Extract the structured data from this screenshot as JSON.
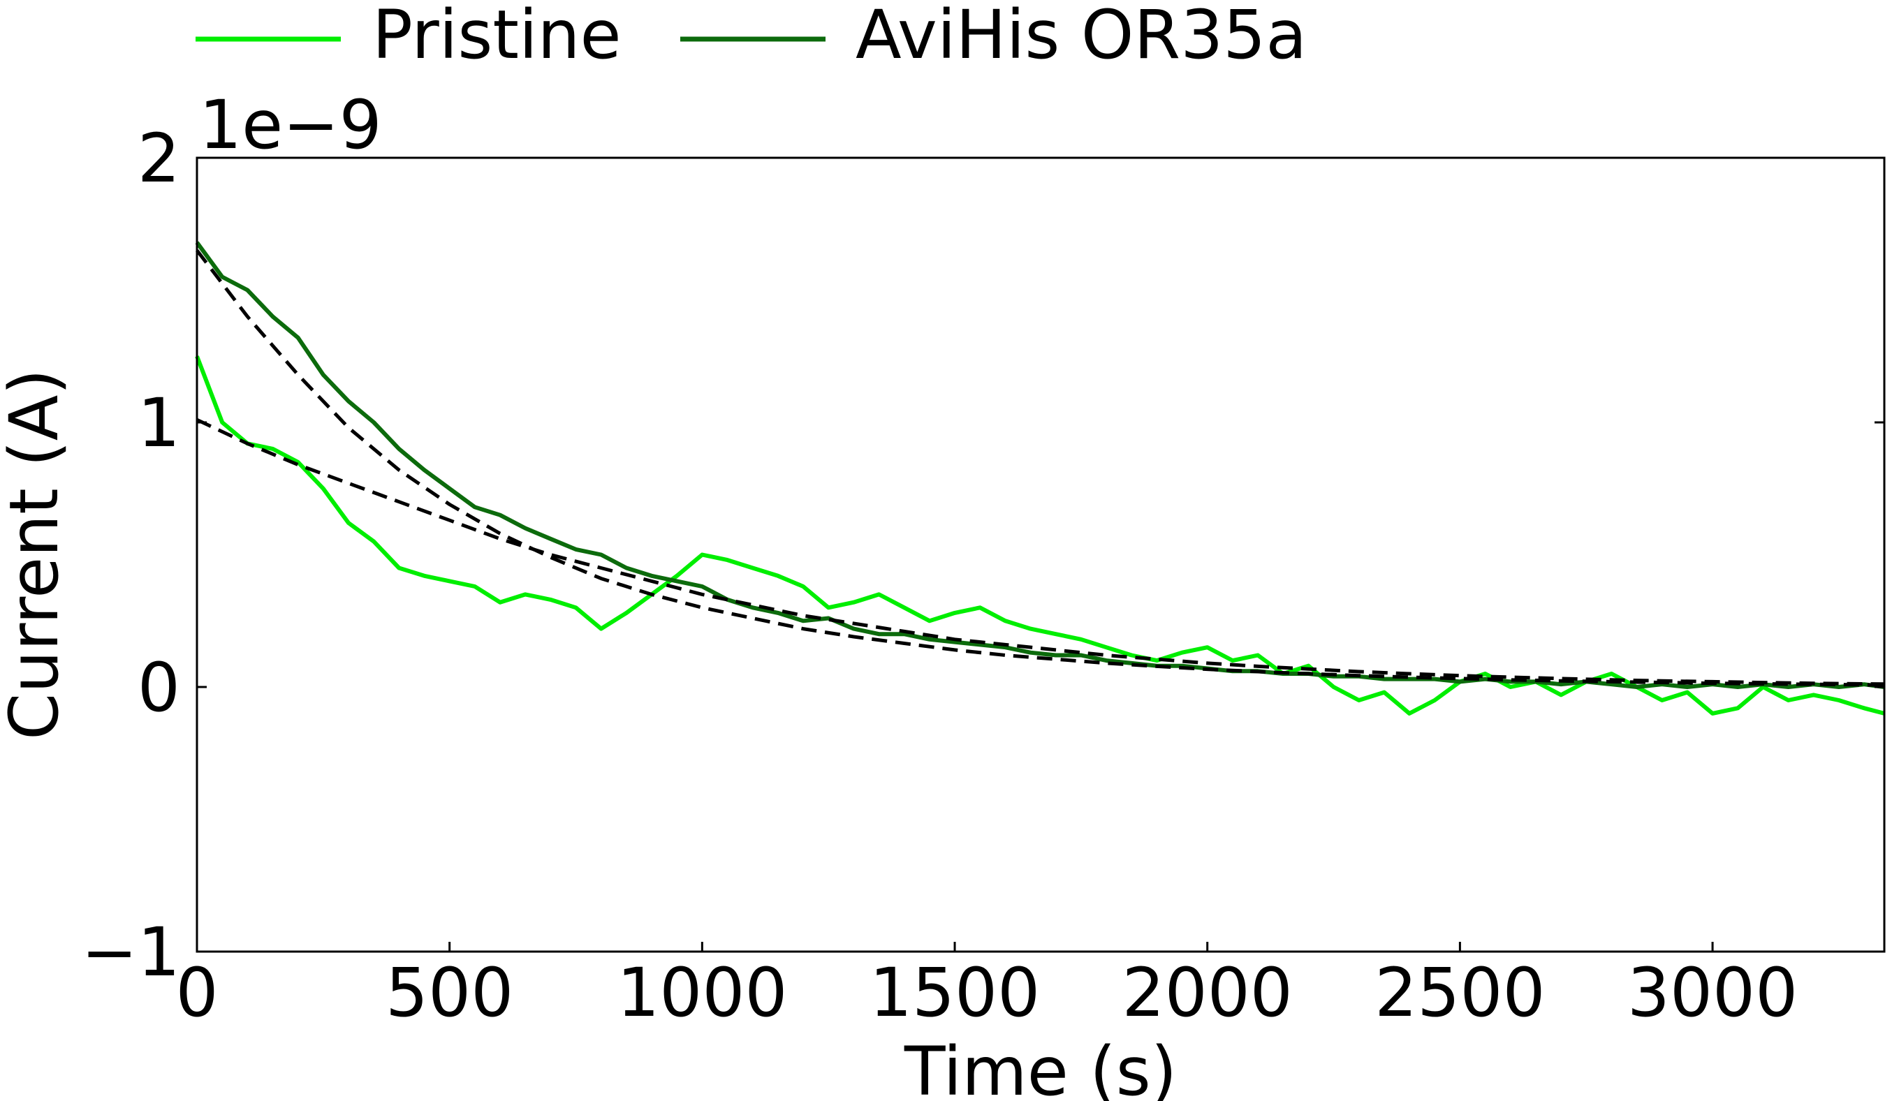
{
  "chart_data": {
    "type": "line",
    "xlabel": "Time (s)",
    "ylabel": "Current (A)",
    "offset_label": "1e−9",
    "xlim": [
      0,
      3340
    ],
    "ylim": [
      -1e-09,
      2e-09
    ],
    "x_ticks": [
      0,
      500,
      1000,
      1500,
      2000,
      2500,
      3000
    ],
    "x_tick_labels": [
      "0",
      "500",
      "1000",
      "1500",
      "2000",
      "2500",
      "3000"
    ],
    "y_ticks": [
      -1e-09,
      0,
      1e-09,
      2e-09
    ],
    "y_tick_labels": [
      "−1",
      "0",
      "1",
      "2"
    ],
    "grid": false,
    "legend_position": "top, above plot, horizontal",
    "series": [
      {
        "name": "Pristine",
        "color": "#00ee00",
        "style": "solid",
        "x": [
          0,
          50,
          100,
          150,
          200,
          250,
          300,
          350,
          400,
          450,
          500,
          550,
          600,
          650,
          700,
          750,
          800,
          850,
          900,
          950,
          1000,
          1050,
          1100,
          1150,
          1200,
          1250,
          1300,
          1350,
          1400,
          1450,
          1500,
          1550,
          1600,
          1650,
          1700,
          1750,
          1800,
          1850,
          1900,
          1950,
          2000,
          2050,
          2100,
          2150,
          2200,
          2250,
          2300,
          2350,
          2400,
          2450,
          2500,
          2550,
          2600,
          2650,
          2700,
          2750,
          2800,
          2850,
          2900,
          2950,
          3000,
          3050,
          3100,
          3150,
          3200,
          3250,
          3300,
          3340
        ],
        "y": [
          1.25e-09,
          1e-09,
          9.2e-10,
          9e-10,
          8.5e-10,
          7.5e-10,
          6.2e-10,
          5.5e-10,
          4.5e-10,
          4.2e-10,
          4e-10,
          3.8e-10,
          3.2e-10,
          3.5e-10,
          3.3e-10,
          3e-10,
          2.2e-10,
          2.8e-10,
          3.5e-10,
          4.2e-10,
          5e-10,
          4.8e-10,
          4.5e-10,
          4.2e-10,
          3.8e-10,
          3e-10,
          3.2e-10,
          3.5e-10,
          3e-10,
          2.5e-10,
          2.8e-10,
          3e-10,
          2.5e-10,
          2.2e-10,
          2e-10,
          1.8e-10,
          1.5e-10,
          1.2e-10,
          1e-10,
          1.3e-10,
          1.5e-10,
          1e-10,
          1.2e-10,
          5e-11,
          8e-11,
          0.0,
          -5e-11,
          -2e-11,
          -1e-10,
          -5e-11,
          2e-11,
          5e-11,
          0.0,
          2e-11,
          -3e-11,
          2e-11,
          5e-11,
          0.0,
          -5e-11,
          -2e-11,
          -1e-10,
          -8e-11,
          0.0,
          -5e-11,
          -3e-11,
          -5e-11,
          -8e-11,
          -1e-10
        ]
      },
      {
        "name": "AviHis OR35a",
        "color": "#0c6b0c",
        "style": "solid",
        "x": [
          0,
          50,
          100,
          150,
          200,
          250,
          300,
          350,
          400,
          450,
          500,
          550,
          600,
          650,
          700,
          750,
          800,
          850,
          900,
          950,
          1000,
          1050,
          1100,
          1150,
          1200,
          1250,
          1300,
          1350,
          1400,
          1450,
          1500,
          1550,
          1600,
          1650,
          1700,
          1750,
          1800,
          1850,
          1900,
          1950,
          2000,
          2050,
          2100,
          2150,
          2200,
          2250,
          2300,
          2350,
          2400,
          2450,
          2500,
          2550,
          2600,
          2650,
          2700,
          2750,
          2800,
          2850,
          2900,
          2950,
          3000,
          3050,
          3100,
          3150,
          3200,
          3250,
          3300,
          3340
        ],
        "y": [
          1.68e-09,
          1.55e-09,
          1.5e-09,
          1.4e-09,
          1.32e-09,
          1.18e-09,
          1.08e-09,
          1e-09,
          9e-10,
          8.2e-10,
          7.5e-10,
          6.8e-10,
          6.5e-10,
          6e-10,
          5.6e-10,
          5.2e-10,
          5e-10,
          4.5e-10,
          4.2e-10,
          4e-10,
          3.8e-10,
          3.3e-10,
          3e-10,
          2.8e-10,
          2.5e-10,
          2.6e-10,
          2.2e-10,
          2e-10,
          2e-10,
          1.8e-10,
          1.7e-10,
          1.6e-10,
          1.5e-10,
          1.3e-10,
          1.2e-10,
          1.2e-10,
          1e-10,
          9e-11,
          8e-11,
          8e-11,
          7e-11,
          6e-11,
          6e-11,
          5e-11,
          5e-11,
          4e-11,
          4e-11,
          3e-11,
          3e-11,
          3e-11,
          2e-11,
          3e-11,
          2e-11,
          2e-11,
          1e-11,
          2e-11,
          1e-11,
          0.0,
          1e-11,
          0.0,
          1e-11,
          0.0,
          1e-11,
          0.0,
          1e-11,
          0.0,
          1e-11,
          0.0
        ]
      },
      {
        "color": "#000000",
        "style": "dashed",
        "x": [
          0,
          100,
          200,
          300,
          400,
          500,
          600,
          700,
          800,
          900,
          1000,
          1100,
          1200,
          1300,
          1400,
          1500,
          1600,
          1700,
          1800,
          1900,
          2000,
          2100,
          2200,
          2300,
          2400,
          2500,
          2600,
          2700,
          2800,
          2900,
          3000,
          3100,
          3200,
          3300,
          3340
        ],
        "y": [
          1.01e-09,
          9.2e-10,
          8.4e-10,
          7.7e-10,
          7e-10,
          6.3e-10,
          5.6e-10,
          5e-10,
          4.5e-10,
          4e-10,
          3.5e-10,
          3.1e-10,
          2.7e-10,
          2.4e-10,
          2.1e-10,
          1.8e-10,
          1.6e-10,
          1.4e-10,
          1.2e-10,
          1.05e-10,
          9e-11,
          7.8e-11,
          6.8e-11,
          5.8e-11,
          5e-11,
          4.3e-11,
          3.7e-11,
          3.2e-11,
          2.7e-11,
          2.3e-11,
          2e-11,
          1.7e-11,
          1.4e-11,
          1.2e-11,
          1.1e-11
        ]
      },
      {
        "color": "#000000",
        "style": "dashed",
        "x": [
          0,
          100,
          200,
          300,
          400,
          500,
          600,
          700,
          800,
          900,
          1000,
          1100,
          1200,
          1300,
          1400,
          1500,
          1600,
          1700,
          1800,
          1900,
          2000,
          2100,
          2200,
          2300,
          2400,
          2500,
          2600,
          2700,
          2800,
          2900,
          3000,
          3100,
          3200,
          3300,
          3340
        ],
        "y": [
          1.65e-09,
          1.4e-09,
          1.18e-09,
          9.8e-10,
          8.2e-10,
          6.9e-10,
          5.8e-10,
          4.9e-10,
          4.1e-10,
          3.5e-10,
          3e-10,
          2.6e-10,
          2.2e-10,
          1.9e-10,
          1.65e-10,
          1.4e-10,
          1.2e-10,
          1.05e-10,
          9e-11,
          7.8e-11,
          6.7e-11,
          5.8e-11,
          5e-11,
          4.3e-11,
          3.7e-11,
          3.2e-11,
          2.7e-11,
          2.3e-11,
          2e-11,
          1.7e-11,
          1.4e-11,
          1.2e-11,
          1e-11,
          8e-12,
          7e-12
        ]
      }
    ]
  }
}
